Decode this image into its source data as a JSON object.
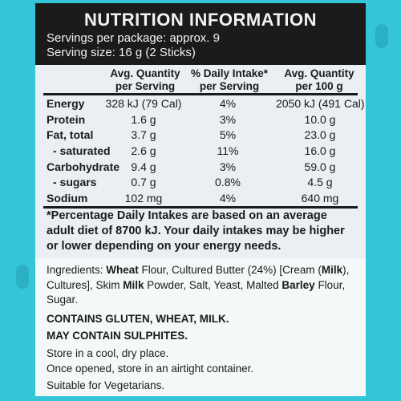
{
  "title": "NUTRITION INFORMATION",
  "servings_per_package": "Servings per package: approx. 9",
  "serving_size": "Serving size: 16 g (2 Sticks)",
  "columns": {
    "per_serving": "Avg. Quantity per Serving",
    "pdi": "% Daily Intake* per Serving",
    "per_100g": "Avg. Quantity per 100 g"
  },
  "rows": [
    {
      "name": "Energy",
      "per_serving": "328 kJ (79 Cal)",
      "pdi": "4%",
      "per_100g": "2050 kJ (491 Cal)"
    },
    {
      "name": "Protein",
      "per_serving": "1.6 g",
      "pdi": "3%",
      "per_100g": "10.0 g"
    },
    {
      "name": "Fat, total",
      "per_serving": "3.7 g",
      "pdi": "5%",
      "per_100g": "23.0 g"
    },
    {
      "name": "- saturated",
      "per_serving": "2.6 g",
      "pdi": "11%",
      "per_100g": "16.0 g"
    },
    {
      "name": "Carbohydrate",
      "per_serving": "9.4 g",
      "pdi": "3%",
      "per_100g": "59.0 g"
    },
    {
      "name": "- sugars",
      "per_serving": "0.7 g",
      "pdi": "0.8%",
      "per_100g": "4.5 g"
    },
    {
      "name": "Sodium",
      "per_serving": "102 mg",
      "pdi": "4%",
      "per_100g": "640 mg"
    }
  ],
  "footnote": "*Percentage Daily Intakes are based on an average adult diet of 8700 kJ. Your daily intakes may be higher or lower depending on your energy needs.",
  "ingredients": {
    "t1": "Ingredients: ",
    "b1": "Wheat",
    "t2": " Flour, Cultured Butter (24%) [Cream (",
    "b2": "Milk",
    "t3": "), Cultures], Skim ",
    "b3": "Milk",
    "t4": " Powder, Salt, Yeast, Malted ",
    "b4": "Barley",
    "t5": " Flour, Sugar."
  },
  "allergen_contains": "CONTAINS GLUTEN, WHEAT, MILK.",
  "allergen_may": "MAY CONTAIN SULPHITES.",
  "storage_1": "Store in a cool, dry place.",
  "storage_2": "Once opened, store in an airtight container.",
  "vegetarian": "Suitable for Vegetarians."
}
